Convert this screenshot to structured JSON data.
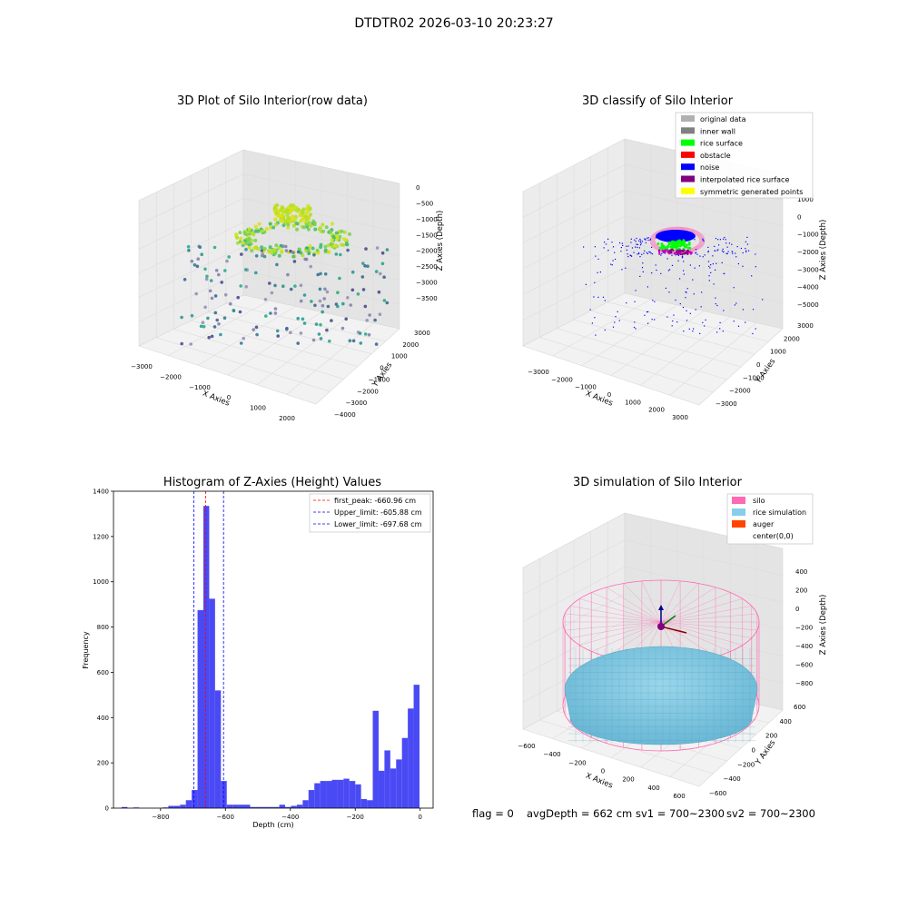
{
  "figure_title": "DTDTR02 2026-03-10 20:23:27",
  "footer": {
    "flag": "flag = 0",
    "avg_depth": "avgDepth = 662 cm",
    "sv1": "sv1 = 700~2300",
    "sv2": "sv2 = 700~2300"
  },
  "colors": {
    "histogram_bar": "#4a4af5",
    "first_peak_line": "#ff0000",
    "limit_line": "#0000ff",
    "silo": "#ff69b4",
    "rice_simulation": "#87ceeb",
    "auger": "#ff4500",
    "original_data": "#b0b0b0",
    "inner_wall": "#808080",
    "rice_surface": "#00ff00",
    "obstacle": "#ff0000",
    "noise": "#0000ff",
    "interpolated_rice_surface": "#800080",
    "symmetric_generated_points": "#ffff00"
  },
  "chart_data": [
    {
      "type": "scatter",
      "title": "3D Plot of Silo Interior(row data)",
      "xlabel": "X Axies",
      "ylabel": "Y Axies",
      "zlabel": "Z Axies (Depth)",
      "x_ticks": [
        "−3000",
        "−2000",
        "−1000",
        "0",
        "1000",
        "2000"
      ],
      "y_ticks": [
        "3000",
        "2000",
        "1000",
        "0",
        "−1000",
        "−2000",
        "−3000",
        "−4000"
      ],
      "z_ticks": [
        "0",
        "−500",
        "−1000",
        "−1500",
        "−2000",
        "−2500",
        "−3000",
        "−3500"
      ],
      "grid": true
    },
    {
      "type": "scatter",
      "title": "3D classify of Silo Interior",
      "xlabel": "X Axies",
      "ylabel": "Y Axies",
      "zlabel": "Z Axies (Depth)",
      "x_ticks": [
        "−3000",
        "−2000",
        "−1000",
        "0",
        "1000",
        "2000",
        "3000"
      ],
      "y_ticks": [
        "3000",
        "2000",
        "1000",
        "0",
        "−1000",
        "−2000",
        "−3000"
      ],
      "z_ticks": [
        "1000",
        "0",
        "−1000",
        "−2000",
        "−3000",
        "−4000",
        "−5000"
      ],
      "legend": [
        "original data",
        "inner wall",
        "rice surface",
        "obstacle",
        "noise",
        "interpolated rice surface",
        "symmetric generated points"
      ],
      "legend_position": "top-right",
      "grid": true
    },
    {
      "type": "bar",
      "title": "Histogram of Z-Axies (Height) Values",
      "xlabel": "Depth (cm)",
      "ylabel": "Frequency",
      "xlim": [
        -945,
        40
      ],
      "ylim": [
        0,
        1400
      ],
      "x_ticks": [
        -800,
        -600,
        -400,
        -200,
        0
      ],
      "x_tick_labels": [
        "−800",
        "−600",
        "−400",
        "−200",
        "0"
      ],
      "y_ticks": [
        0,
        200,
        400,
        600,
        800,
        1000,
        1200,
        1400
      ],
      "bin_width": 18,
      "bins_start": [
        -920,
        -902,
        -884,
        -866,
        -848,
        -830,
        -812,
        -794,
        -776,
        -758,
        -740,
        -722,
        -704,
        -686,
        -668,
        -650,
        -632,
        -614,
        -596,
        -578,
        -560,
        -542,
        -524,
        -506,
        -488,
        -470,
        -452,
        -434,
        -416,
        -398,
        -380,
        -362,
        -344,
        -326,
        -308,
        -290,
        -272,
        -254,
        -236,
        -218,
        -200,
        -182,
        -164,
        -146,
        -128,
        -110,
        -92,
        -74,
        -56,
        -38,
        -20
      ],
      "values": [
        5,
        0,
        3,
        0,
        0,
        0,
        0,
        3,
        10,
        10,
        15,
        35,
        80,
        875,
        1335,
        925,
        520,
        120,
        15,
        15,
        15,
        15,
        5,
        5,
        5,
        5,
        5,
        15,
        5,
        10,
        15,
        35,
        80,
        110,
        120,
        120,
        125,
        125,
        130,
        120,
        105,
        40,
        35,
        430,
        165,
        255,
        175,
        215,
        310,
        440,
        545
      ],
      "reference_lines": [
        {
          "name": "first_peak: -660.96 cm",
          "x": -660.96,
          "style": "dashed",
          "color": "red"
        },
        {
          "name": "Upper_limit: -605.88 cm",
          "x": -605.88,
          "style": "dashed",
          "color": "blue"
        },
        {
          "name": "Lower_limit: -697.68 cm",
          "x": -697.68,
          "style": "dashed",
          "color": "blue"
        }
      ],
      "legend_position": "top-right",
      "grid": false
    },
    {
      "type": "scatter",
      "title": "3D simulation of Silo Interior",
      "xlabel": "X Axies",
      "ylabel": "Y Axies",
      "zlabel": "Z Axies (Depth)",
      "x_ticks": [
        "−600",
        "−400",
        "−200",
        "0",
        "200",
        "400",
        "600"
      ],
      "y_ticks": [
        "600",
        "400",
        "200",
        "0",
        "−200",
        "−400",
        "−600"
      ],
      "z_ticks": [
        "400",
        "200",
        "0",
        "−200",
        "−400",
        "−600",
        "−800"
      ],
      "legend": [
        "silo",
        "rice simulation",
        "auger",
        "center(0,0)"
      ],
      "legend_position": "top-right",
      "grid": true
    }
  ]
}
